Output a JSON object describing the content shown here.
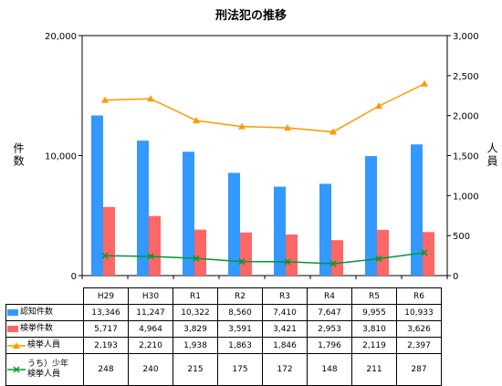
{
  "title": "刑法犯の推移",
  "chart_data": {
    "type": "bar",
    "title": "刑法犯の推移",
    "categories": [
      "H29",
      "H30",
      "R1",
      "R2",
      "R3",
      "R4",
      "R5",
      "R6"
    ],
    "ylabel_left": "件数",
    "ylabel_right": "人員",
    "ylim_left": [
      0,
      20000
    ],
    "ylim_right": [
      0,
      3000
    ],
    "yticks_left": [
      "0",
      "10,000",
      "20,000"
    ],
    "yticks_right": [
      "0",
      "500",
      "1,000",
      "1,500",
      "2,000",
      "2,500",
      "3,000"
    ],
    "grid": false,
    "series": [
      {
        "name": "認知件数",
        "type": "bar",
        "axis": "left",
        "color": "#3399ff",
        "values": [
          13346,
          11247,
          10322,
          8560,
          7410,
          7647,
          9955,
          10933
        ],
        "labels": [
          "13,346",
          "11,247",
          "10,322",
          "8,560",
          "7,410",
          "7,647",
          "9,955",
          "10,933"
        ]
      },
      {
        "name": "検挙件数",
        "type": "bar",
        "axis": "left",
        "color": "#ff6666",
        "values": [
          5717,
          4964,
          3829,
          3591,
          3421,
          2953,
          3810,
          3626
        ],
        "labels": [
          "5,717",
          "4,964",
          "3,829",
          "3,591",
          "3,421",
          "2,953",
          "3,810",
          "3,626"
        ]
      },
      {
        "name": "検挙人員",
        "type": "line",
        "axis": "right",
        "color": "#ff9900",
        "marker": "triangle",
        "values": [
          2193,
          2210,
          1938,
          1863,
          1846,
          1796,
          2119,
          2397
        ],
        "labels": [
          "2,193",
          "2,210",
          "1,938",
          "1,863",
          "1,846",
          "1,796",
          "2,119",
          "2,397"
        ]
      },
      {
        "name": "うち）少年 検挙人員",
        "name_lines": [
          "うち）少年",
          "検挙人員"
        ],
        "type": "line",
        "axis": "right",
        "color": "#009933",
        "marker": "x",
        "values": [
          248,
          240,
          215,
          175,
          172,
          148,
          211,
          287
        ],
        "labels": [
          "248",
          "240",
          "215",
          "175",
          "172",
          "148",
          "211",
          "287"
        ]
      }
    ]
  }
}
